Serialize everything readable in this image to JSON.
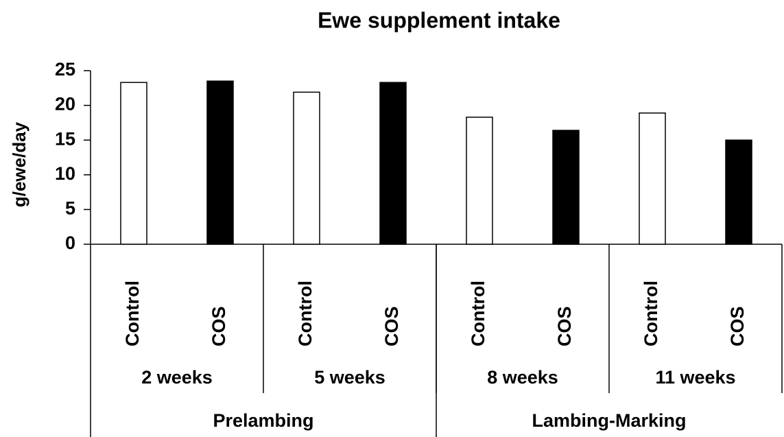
{
  "chart_data": {
    "type": "bar",
    "title": "Ewe supplement intake",
    "ylabel": "g/ewe/day",
    "categories": [
      "Control",
      "COS",
      "Control",
      "COS",
      "Control",
      "COS",
      "Control",
      "COS"
    ],
    "groups": [
      "2 weeks",
      "5 weeks",
      "8 weeks",
      "11 weeks"
    ],
    "supergroups": [
      "Prelambing",
      "Lambing-Marking"
    ],
    "values": [
      23.3,
      23.5,
      21.9,
      23.3,
      18.3,
      16.4,
      18.9,
      15.0
    ],
    "colors": [
      "#ffffff",
      "#000000",
      "#ffffff",
      "#000000",
      "#ffffff",
      "#000000",
      "#ffffff",
      "#000000"
    ],
    "ylim": [
      0,
      25
    ],
    "yticks": [
      0,
      5,
      10,
      15,
      20,
      25
    ]
  }
}
